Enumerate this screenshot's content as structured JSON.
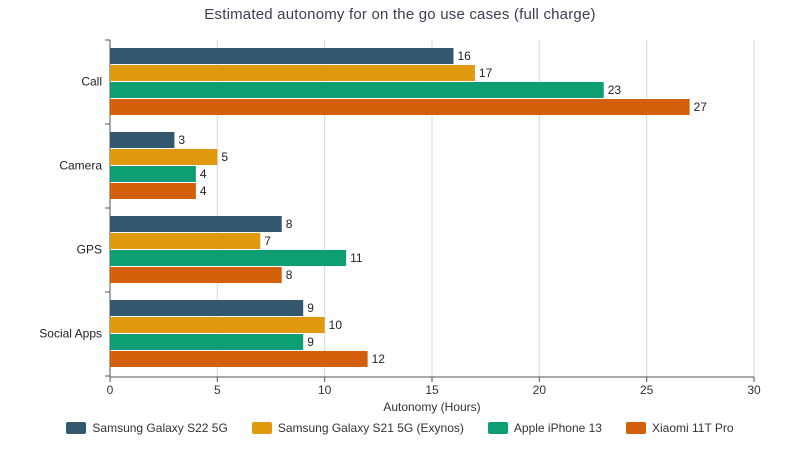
{
  "chart_data": {
    "type": "bar",
    "orientation": "horizontal",
    "title": "Estimated autonomy for on the go use cases (full charge)",
    "xlabel": "Autonomy (Hours)",
    "ylabel": "",
    "xlim": [
      0,
      30
    ],
    "xticks": [
      "0",
      "5",
      "10",
      "15",
      "20",
      "25",
      "30"
    ],
    "grid": "vertical",
    "legend_position": "bottom",
    "categories": [
      "Call",
      "Camera",
      "GPS",
      "Social Apps"
    ],
    "series": [
      {
        "name": "Samsung Galaxy S22 5G",
        "color": "#34586e",
        "values": [
          16,
          3,
          8,
          9
        ],
        "labels": [
          "16",
          "3",
          "8",
          "9"
        ]
      },
      {
        "name": "Samsung Galaxy S21 5G (Exynos)",
        "color": "#e0980f",
        "values": [
          17,
          5,
          7,
          10
        ],
        "labels": [
          "17",
          "5",
          "7",
          "10"
        ]
      },
      {
        "name": "Apple iPhone 13",
        "color": "#0e9e74",
        "values": [
          23,
          4,
          11,
          9
        ],
        "labels": [
          "23",
          "4",
          "11",
          "9"
        ]
      },
      {
        "name": "Xiaomi 11T Pro",
        "color": "#d35f0b",
        "values": [
          27,
          4,
          8,
          12
        ],
        "labels": [
          "27",
          "4",
          "8",
          "12"
        ]
      }
    ]
  }
}
